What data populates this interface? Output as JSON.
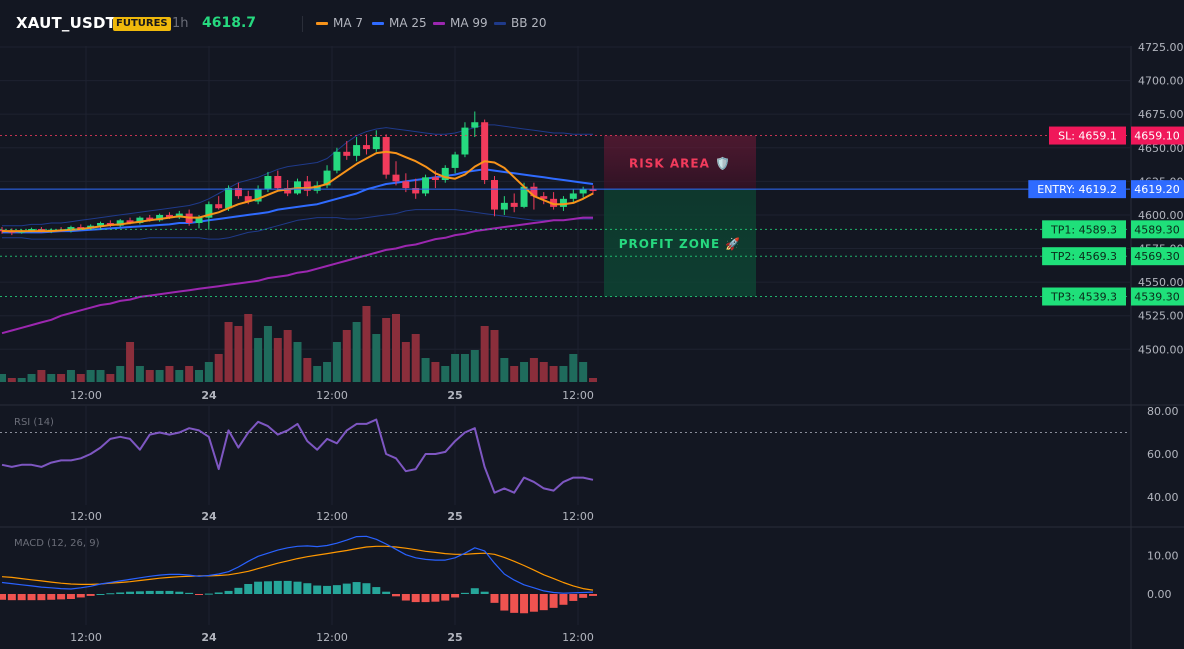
{
  "header": {
    "symbol": "XAUT_USDT",
    "market_badge": "FUTURES",
    "timeframe": "1h",
    "last_price": "4618.7",
    "legend": [
      {
        "label": "MA 7",
        "color": "#f7931a"
      },
      {
        "label": "MA 25",
        "color": "#2f6bff"
      },
      {
        "label": "MA 99",
        "color": "#9c27b0"
      },
      {
        "label": "BB 20",
        "color": "#1f3a8a"
      }
    ]
  },
  "colors": {
    "background": "#131722",
    "up": "#26d97f",
    "down": "#f23b5c",
    "vol_up": "#1f6b5c",
    "vol_down": "#8a2e3b",
    "grid": "#1e2230",
    "axis_text": "#b2b5be",
    "rsi": "#7e57c2",
    "macd": "#2962ff",
    "signal": "#ff9800",
    "hist_up": "#26a69a",
    "hist_down": "#ef5350"
  },
  "chart_data": [
    {
      "type": "candlestick",
      "title": "",
      "ylim": [
        4485,
        4730
      ],
      "y_ticks": [
        "4725.00",
        "4700.00",
        "4675.00",
        "4650.00",
        "4625.00",
        "4600.00",
        "4575.00",
        "4550.00",
        "4525.00",
        "4500.00"
      ],
      "x_ticks": [
        "12:00",
        "24",
        "12:00",
        "25",
        "12:00"
      ],
      "x_range_hours": [
        0,
        64
      ],
      "x_tick_positions_hours": [
        8,
        20,
        32,
        44,
        56
      ],
      "candles": [
        [
          4589.0,
          4591.0,
          4586.0,
          4588.0
        ],
        [
          4588.0,
          4590.0,
          4585.0,
          4587.0
        ],
        [
          4587.0,
          4589.0,
          4586.0,
          4588.0
        ],
        [
          4588.0,
          4590.5,
          4587.0,
          4589.5
        ],
        [
          4589.5,
          4591.0,
          4587.0,
          4588.0
        ],
        [
          4588.0,
          4590.0,
          4586.5,
          4589.0
        ],
        [
          4589.0,
          4591.0,
          4587.5,
          4588.5
        ],
        [
          4588.5,
          4592.0,
          4587.0,
          4591.0
        ],
        [
          4591.0,
          4593.0,
          4589.0,
          4590.0
        ],
        [
          4590.0,
          4593.0,
          4589.0,
          4592.0
        ],
        [
          4592.0,
          4595.0,
          4590.0,
          4594.0
        ],
        [
          4594.0,
          4596.0,
          4591.0,
          4592.0
        ],
        [
          4592.0,
          4597.0,
          4591.0,
          4596.0
        ],
        [
          4596.0,
          4598.0,
          4593.0,
          4594.0
        ],
        [
          4594.0,
          4599.0,
          4593.0,
          4598.0
        ],
        [
          4598.0,
          4600.0,
          4595.0,
          4596.0
        ],
        [
          4596.0,
          4601.0,
          4595.0,
          4600.0
        ],
        [
          4600.0,
          4602.0,
          4597.0,
          4598.0
        ],
        [
          4598.0,
          4603.0,
          4597.0,
          4601.0
        ],
        [
          4601.0,
          4604.0,
          4592.0,
          4594.0
        ],
        [
          4594.0,
          4600.0,
          4590.0,
          4598.0
        ],
        [
          4598.0,
          4610.0,
          4589.0,
          4608.0
        ],
        [
          4608.0,
          4614.0,
          4604.0,
          4605.0
        ],
        [
          4605.0,
          4622.0,
          4603.0,
          4620.0
        ],
        [
          4620.0,
          4624.0,
          4612.0,
          4614.0
        ],
        [
          4614.0,
          4618.0,
          4608.0,
          4610.0
        ],
        [
          4610.0,
          4622.0,
          4608.0,
          4619.0
        ],
        [
          4619.0,
          4632.0,
          4617.0,
          4629.0
        ],
        [
          4629.0,
          4633.0,
          4618.0,
          4620.0
        ],
        [
          4620.0,
          4626.0,
          4614.0,
          4616.0
        ],
        [
          4616.0,
          4627.0,
          4615.0,
          4625.0
        ],
        [
          4625.0,
          4629.0,
          4614.0,
          4618.0
        ],
        [
          4618.0,
          4625.0,
          4616.0,
          4622.0
        ],
        [
          4622.0,
          4637.0,
          4620.0,
          4633.0
        ],
        [
          4633.0,
          4650.0,
          4631.0,
          4647.0
        ],
        [
          4647.0,
          4655.0,
          4641.0,
          4644.0
        ],
        [
          4644.0,
          4658.0,
          4640.0,
          4652.0
        ],
        [
          4652.0,
          4660.0,
          4645.0,
          4649.0
        ],
        [
          4649.0,
          4663.0,
          4647.0,
          4658.0
        ],
        [
          4658.0,
          4660.0,
          4627.0,
          4630.0
        ],
        [
          4630.0,
          4640.0,
          4622.0,
          4625.0
        ],
        [
          4625.0,
          4631.0,
          4617.0,
          4620.0
        ],
        [
          4620.0,
          4627.0,
          4612.0,
          4616.0
        ],
        [
          4616.0,
          4630.0,
          4614.0,
          4628.0
        ],
        [
          4628.0,
          4633.0,
          4620.0,
          4626.0
        ],
        [
          4626.0,
          4637.0,
          4624.0,
          4635.0
        ],
        [
          4635.0,
          4647.0,
          4631.0,
          4645.0
        ],
        [
          4645.0,
          4669.0,
          4643.0,
          4665.0
        ],
        [
          4665.0,
          4677.0,
          4658.0,
          4669.0
        ],
        [
          4669.0,
          4671.0,
          4623.0,
          4626.0
        ],
        [
          4626.0,
          4629.0,
          4599.0,
          4604.0
        ],
        [
          4604.0,
          4614.0,
          4600.0,
          4609.0
        ],
        [
          4609.0,
          4616.0,
          4602.0,
          4606.0
        ],
        [
          4606.0,
          4624.0,
          4605.0,
          4621.0
        ],
        [
          4621.0,
          4624.0,
          4604.0,
          4614.0
        ],
        [
          4614.0,
          4617.0,
          4608.0,
          4612.0
        ],
        [
          4612.0,
          4617.0,
          4604.0,
          4606.0
        ],
        [
          4606.0,
          4614.0,
          4603.0,
          4612.0
        ],
        [
          4612.0,
          4619.0,
          4609.0,
          4616.0
        ],
        [
          4616.0,
          4621.0,
          4613.0,
          4619.0
        ],
        [
          4619.0,
          4622.0,
          4615.0,
          4618.7
        ]
      ],
      "ma7": [
        4588,
        4588,
        4588,
        4588,
        4588,
        4588,
        4588.5,
        4589,
        4589.5,
        4590.5,
        4591.5,
        4592.5,
        4593,
        4594,
        4595,
        4596,
        4597,
        4598,
        4599,
        4598,
        4598,
        4600,
        4602,
        4605,
        4608,
        4610,
        4612,
        4615,
        4618,
        4619,
        4620,
        4620,
        4621,
        4623,
        4628,
        4633,
        4638,
        4642,
        4646,
        4647,
        4646,
        4643,
        4640,
        4636,
        4631,
        4628,
        4627,
        4630,
        4636,
        4640,
        4639,
        4635,
        4628,
        4621,
        4614,
        4611,
        4608,
        4608,
        4609,
        4612,
        4616
      ],
      "ma25": [
        4587,
        4587,
        4587,
        4587,
        4587,
        4587.5,
        4588,
        4588,
        4588.5,
        4589,
        4589.5,
        4590,
        4590.5,
        4591,
        4591.5,
        4592,
        4592.5,
        4593,
        4594,
        4594,
        4595,
        4596,
        4597,
        4598,
        4599,
        4600,
        4601,
        4602,
        4604,
        4605,
        4606,
        4607,
        4608,
        4610,
        4612,
        4614,
        4616,
        4619,
        4621,
        4623,
        4624,
        4625,
        4626,
        4627,
        4628,
        4629,
        4630,
        4632,
        4633,
        4634,
        4633,
        4632,
        4631,
        4630,
        4629,
        4628,
        4627,
        4626,
        4625,
        4624,
        4623
      ],
      "ma99": [
        4512,
        4514,
        4516,
        4518,
        4520,
        4522,
        4525,
        4527,
        4529,
        4531,
        4533,
        4534,
        4536,
        4537,
        4539,
        4540,
        4541,
        4542,
        4543,
        4544,
        4545,
        4546,
        4547,
        4548,
        4549,
        4550,
        4551,
        4553,
        4554,
        4555,
        4557,
        4558,
        4560,
        4562,
        4564,
        4566,
        4568,
        4570,
        4572,
        4574,
        4575,
        4577,
        4578,
        4580,
        4582,
        4583,
        4585,
        4586,
        4588,
        4589,
        4590,
        4591,
        4592,
        4593,
        4594,
        4595,
        4596,
        4596,
        4597,
        4598,
        4598
      ],
      "bb_upper": [
        4592,
        4592,
        4592,
        4593,
        4593,
        4594,
        4594,
        4595,
        4596,
        4597,
        4598,
        4599,
        4600,
        4601,
        4602,
        4603,
        4604,
        4605,
        4606,
        4607,
        4609,
        4612,
        4616,
        4620,
        4624,
        4626,
        4628,
        4631,
        4634,
        4636,
        4637,
        4638,
        4639,
        4642,
        4648,
        4654,
        4659,
        4662,
        4664,
        4665,
        4664,
        4663,
        4662,
        4661,
        4660,
        4660,
        4661,
        4663,
        4665,
        4667,
        4667,
        4666,
        4665,
        4664,
        4663,
        4662,
        4661,
        4661,
        4660,
        4660,
        4660
      ],
      "bb_lower": [
        4583,
        4583,
        4583,
        4582,
        4582,
        4582,
        4582,
        4582,
        4582,
        4582,
        4582,
        4582,
        4582,
        4582,
        4582,
        4583,
        4583,
        4583,
        4583,
        4583,
        4583,
        4582,
        4582,
        4583,
        4585,
        4587,
        4588,
        4590,
        4592,
        4594,
        4596,
        4597,
        4598,
        4598,
        4598,
        4597,
        4597,
        4598,
        4599,
        4600,
        4601,
        4603,
        4604,
        4604,
        4604,
        4604,
        4604,
        4603,
        4602,
        4601,
        4600,
        4599,
        4598,
        4597,
        4596,
        4596,
        4596,
        4596,
        4597,
        4597,
        4597
      ],
      "annotations": {
        "sl": {
          "price": 4659.1,
          "label": "SL: 4659.1",
          "axis": "4659.10"
        },
        "entry": {
          "price": 4619.2,
          "label": "ENTRY: 4619.2",
          "axis": "4619.20"
        },
        "tp": [
          {
            "price": 4589.3,
            "label": "TP1: 4589.3",
            "axis": "4589.30"
          },
          {
            "price": 4569.3,
            "label": "TP2: 4569.3",
            "axis": "4569.30"
          },
          {
            "price": 4539.3,
            "label": "TP3: 4539.3",
            "axis": "4539.30"
          }
        ],
        "risk_label": "RISK AREA 🛡️",
        "profit_label": "PROFIT ZONE 🚀"
      }
    },
    {
      "type": "bar",
      "title": "",
      "series_name": "",
      "volume": [
        2,
        1,
        1,
        2,
        3,
        2,
        2,
        3,
        2,
        3,
        3,
        2,
        4,
        10,
        4,
        3,
        3,
        4,
        3,
        4,
        3,
        5,
        7,
        15,
        14,
        17,
        11,
        14,
        11,
        13,
        10,
        6,
        4,
        5,
        10,
        13,
        15,
        19,
        12,
        16,
        17,
        10,
        12,
        6,
        5,
        4,
        7,
        7,
        8,
        14,
        13,
        6,
        4,
        5,
        6,
        5,
        4,
        4,
        7,
        5,
        1
      ],
      "down_flags": [
        0,
        1,
        0,
        0,
        1,
        0,
        1,
        0,
        1,
        0,
        0,
        1,
        0,
        1,
        0,
        1,
        0,
        1,
        0,
        1,
        0,
        0,
        1,
        1,
        1,
        1,
        0,
        0,
        1,
        1,
        0,
        1,
        0,
        0,
        0,
        1,
        0,
        1,
        0,
        1,
        1,
        1,
        1,
        0,
        1,
        0,
        0,
        0,
        0,
        1,
        1,
        0,
        1,
        0,
        1,
        1,
        1,
        0,
        0,
        0,
        1
      ]
    },
    {
      "type": "line",
      "title": "RSI (14)",
      "ylim": [
        35,
        85
      ],
      "y_ticks": [
        "80.00",
        "60.00",
        "40.00"
      ],
      "overbought": 70,
      "x_ticks": [
        "12:00",
        "24",
        "12:00",
        "25",
        "12:00"
      ],
      "values": [
        55,
        54,
        55,
        55,
        54,
        56,
        57,
        57,
        58,
        60,
        63,
        67,
        68,
        67,
        62,
        69,
        70,
        69,
        70,
        72,
        71,
        68,
        53,
        71,
        63,
        70,
        75,
        73,
        69,
        71,
        74,
        66,
        62,
        67,
        65,
        71,
        74,
        74,
        76,
        60,
        58,
        52,
        53,
        60,
        60,
        61,
        66,
        70,
        72,
        54,
        42,
        44,
        42,
        49,
        47,
        44,
        43,
        47,
        49,
        49,
        48
      ]
    },
    {
      "type": "line",
      "title": "MACD (12, 26, 9)",
      "ylim": [
        -5,
        17
      ],
      "y_ticks": [
        "10.00",
        "0.00"
      ],
      "x_ticks": [
        "12:00",
        "24",
        "12:00",
        "25",
        "12:00"
      ],
      "macd": [
        3,
        2.7,
        2.4,
        2.1,
        1.8,
        1.6,
        1.4,
        1.3,
        1.6,
        2,
        2.6,
        3,
        3.4,
        3.8,
        4.2,
        4.6,
        4.9,
        5.1,
        5.1,
        4.9,
        4.6,
        4.8,
        5.2,
        5.8,
        7,
        8.5,
        9.8,
        10.6,
        11.4,
        12,
        12.4,
        12.5,
        12.3,
        12.6,
        13.2,
        14,
        14.9,
        15,
        14.2,
        13,
        11.6,
        10.2,
        9.4,
        9,
        8.8,
        8.8,
        9.4,
        10.6,
        12,
        11.2,
        8,
        5.2,
        3.6,
        2.4,
        1.6,
        0.8,
        0.4,
        0.2,
        0.3,
        0.4,
        0.5
      ],
      "signal": [
        4.5,
        4.3,
        4,
        3.7,
        3.4,
        3.1,
        2.8,
        2.6,
        2.5,
        2.5,
        2.6,
        2.8,
        3,
        3.2,
        3.5,
        3.8,
        4.1,
        4.3,
        4.5,
        4.6,
        4.7,
        4.7,
        4.8,
        5,
        5.4,
        5.9,
        6.6,
        7.3,
        8,
        8.6,
        9.2,
        9.7,
        10.1,
        10.5,
        10.9,
        11.3,
        11.8,
        12.2,
        12.4,
        12.4,
        12.2,
        11.9,
        11.5,
        11.1,
        10.8,
        10.5,
        10.3,
        10.3,
        10.5,
        10.6,
        10.3,
        9.5,
        8.5,
        7.4,
        6.2,
        5,
        4,
        3,
        2.1,
        1.4,
        1
      ]
    }
  ]
}
